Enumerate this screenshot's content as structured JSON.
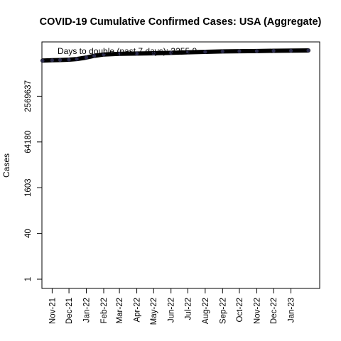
{
  "chart_data": {
    "type": "line",
    "title": "COVID-19 Cumulative Confirmed Cases: USA (Aggregate)",
    "xlabel": "",
    "ylabel": "Cases",
    "y_scale": "log",
    "y_ticks": [
      1,
      40,
      1603,
      64180,
      2569637
    ],
    "x_ticks": [
      "Nov-21",
      "Dec-21",
      "Jan-22",
      "Feb-22",
      "Mar-22",
      "Apr-22",
      "May-22",
      "Jun-22",
      "Jul-22",
      "Aug-22",
      "Sep-22",
      "Oct-22",
      "Nov-22",
      "Dec-22",
      "Jan-23"
    ],
    "annotation": "Days to double (past 7 days): 3255.8",
    "grid": false,
    "legend": "none",
    "color": "#000000",
    "series": [
      {
        "x": [
          "2021-10-15",
          "2021-11-01",
          "2021-11-15",
          "2021-12-01",
          "2021-12-15",
          "2022-01-01",
          "2022-01-15",
          "2022-02-01",
          "2022-03-01",
          "2022-04-01",
          "2022-05-01",
          "2022-06-01",
          "2022-07-01",
          "2022-08-01",
          "2022-09-01",
          "2022-10-01",
          "2022-11-01",
          "2022-12-01",
          "2023-01-01",
          "2023-02-01"
        ],
        "y": [
          45500000,
          46700000,
          47600000,
          48800000,
          51500000,
          58000000,
          66500000,
          74500000,
          78900000,
          80100000,
          81800000,
          85000000,
          88500000,
          92000000,
          94800000,
          96500000,
          98000000,
          100000000,
          101500000,
          103000000
        ]
      }
    ]
  }
}
